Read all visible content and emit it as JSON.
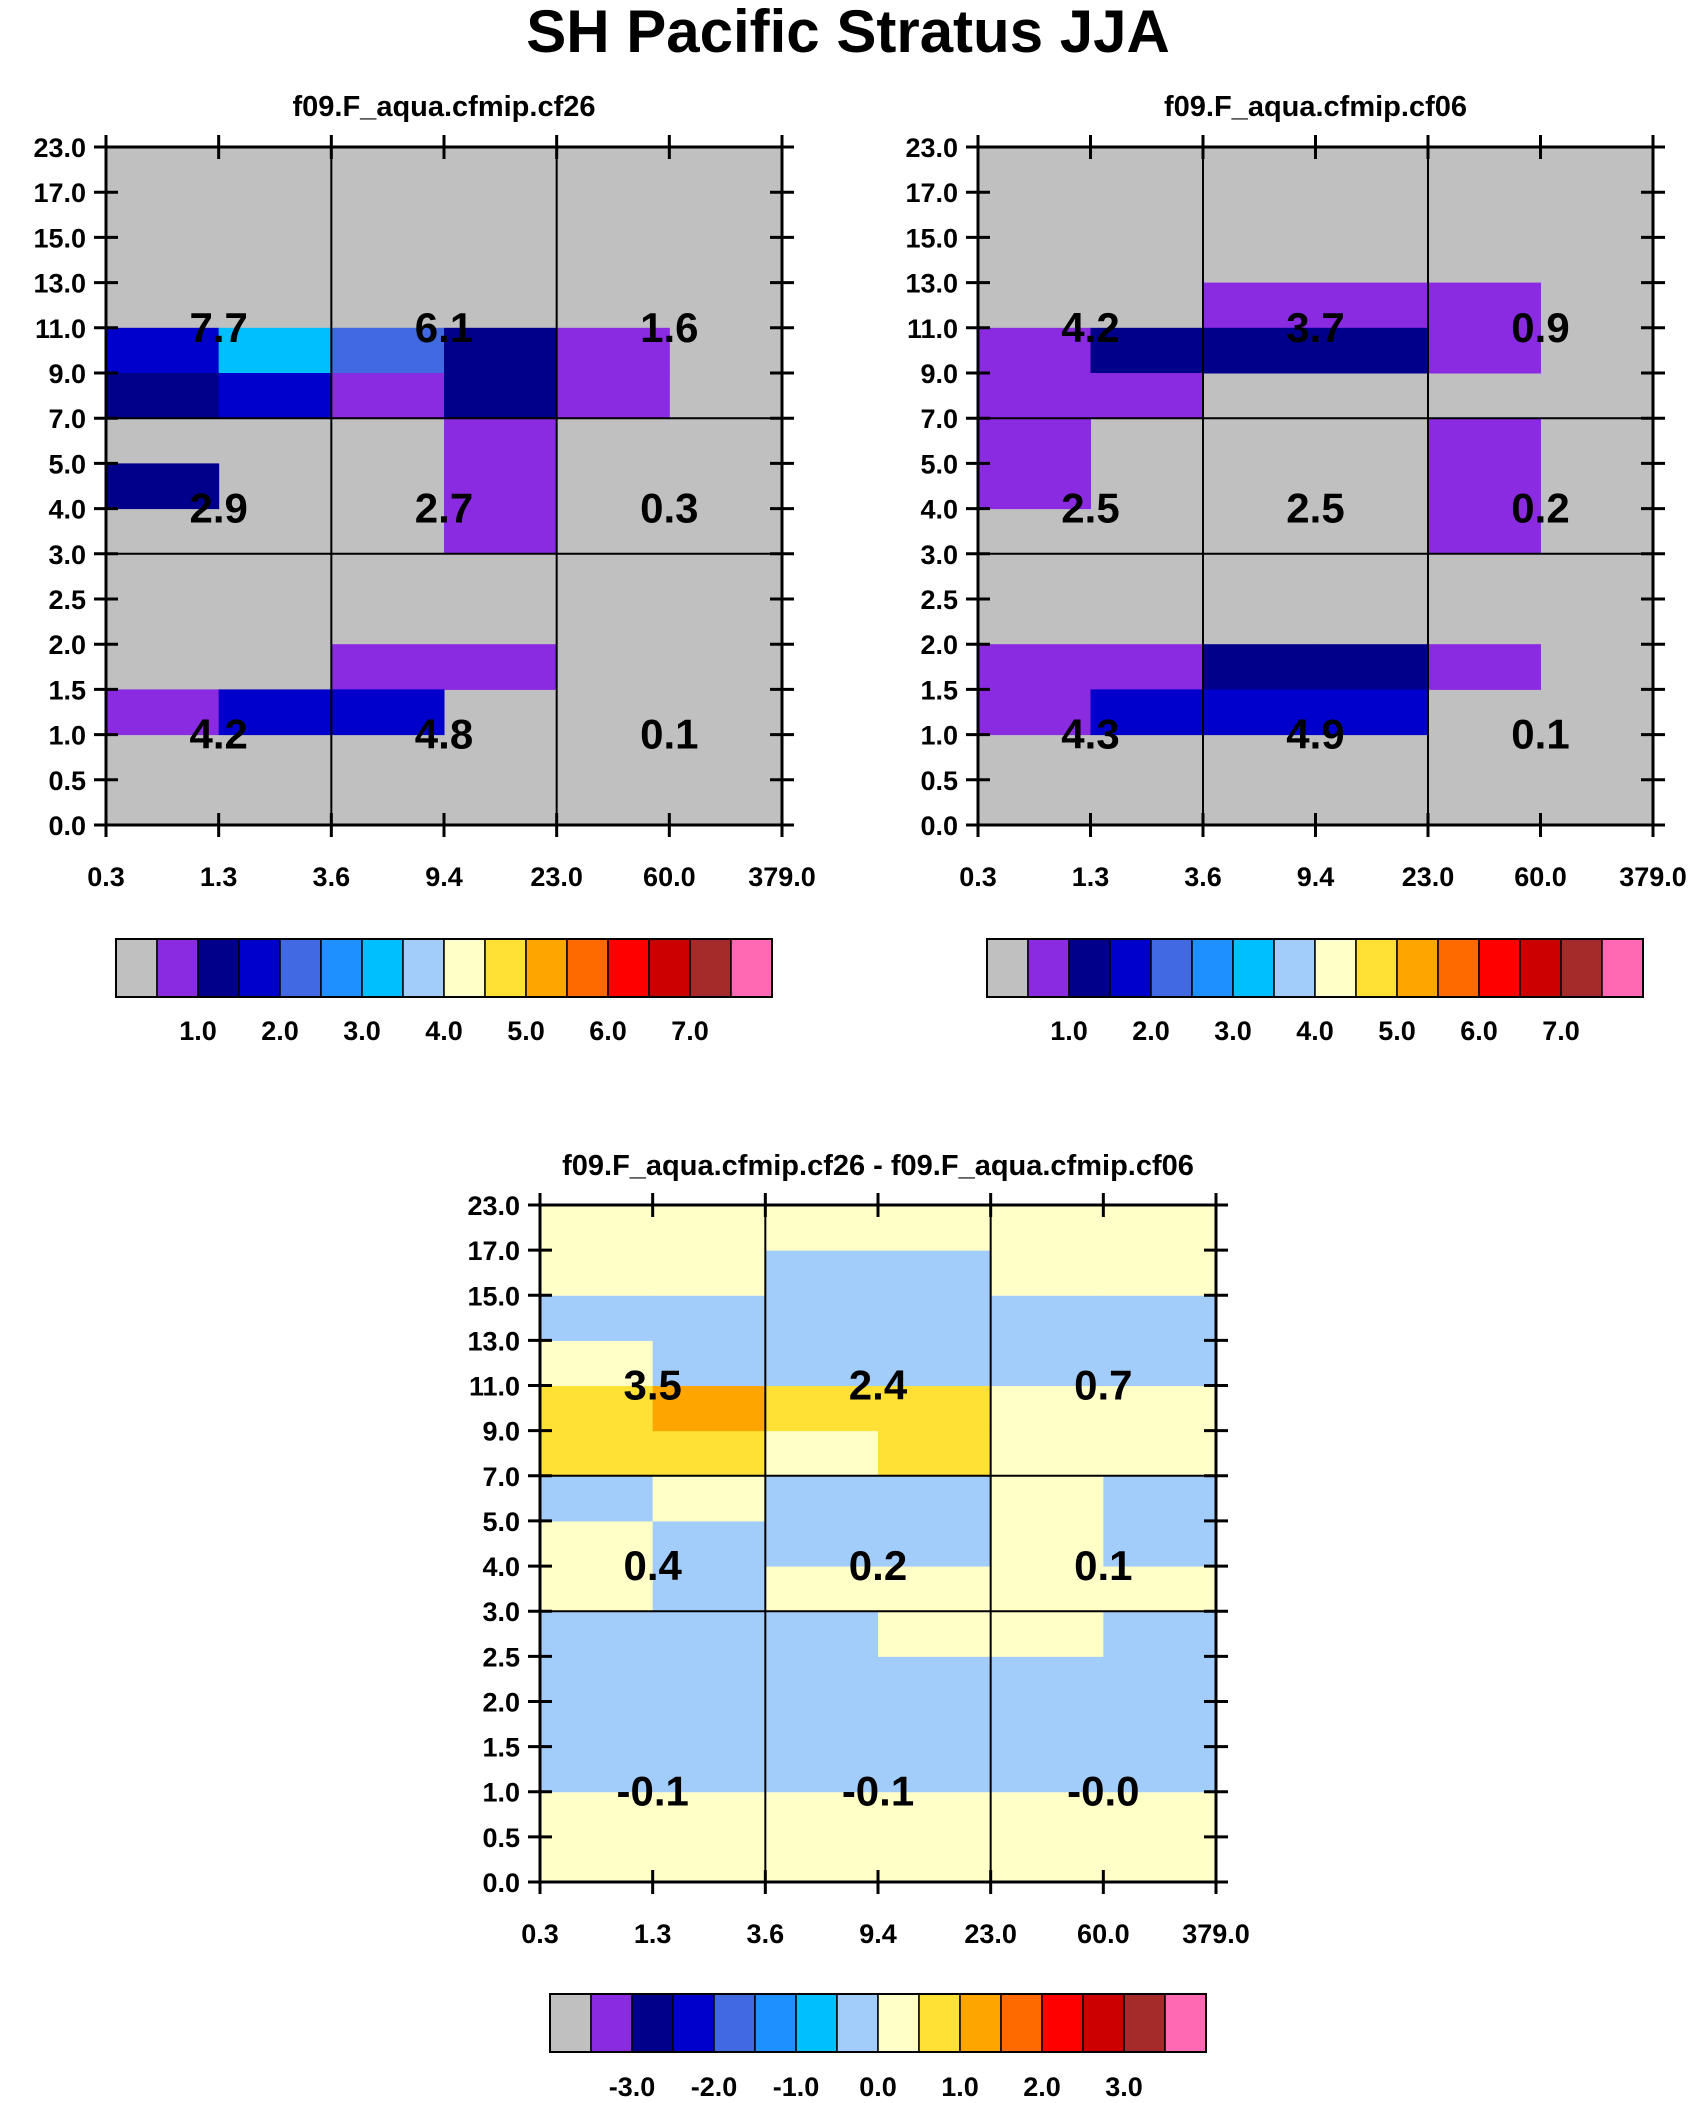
{
  "title": "SH Pacific Stratus JJA",
  "chart_data": [
    {
      "type": "heatmap",
      "panel": "model-a",
      "title": "f09.F_aqua.cfmip.cf26",
      "x_ticks": [
        "0.3",
        "1.3",
        "3.6",
        "9.4",
        "23.0",
        "60.0",
        "379.0"
      ],
      "y_ticks": [
        "0.0",
        "0.5",
        "1.0",
        "1.5",
        "2.0",
        "2.5",
        "3.0",
        "4.0",
        "5.0",
        "7.0",
        "9.0",
        "11.0",
        "13.0",
        "15.0",
        "17.0",
        "23.0"
      ],
      "cells": [
        {
          "row": 10,
          "col": 0,
          "bin": 3
        },
        {
          "row": 10,
          "col": 1,
          "bin": 6
        },
        {
          "row": 10,
          "col": 2,
          "bin": 4
        },
        {
          "row": 10,
          "col": 3,
          "bin": 2
        },
        {
          "row": 10,
          "col": 4,
          "bin": 1
        },
        {
          "row": 9,
          "col": 0,
          "bin": 2
        },
        {
          "row": 9,
          "col": 1,
          "bin": 3
        },
        {
          "row": 9,
          "col": 2,
          "bin": 1
        },
        {
          "row": 9,
          "col": 3,
          "bin": 2
        },
        {
          "row": 9,
          "col": 4,
          "bin": 1
        },
        {
          "row": 8,
          "col": 3,
          "bin": 1
        },
        {
          "row": 7,
          "col": 0,
          "bin": 2
        },
        {
          "row": 7,
          "col": 3,
          "bin": 1
        },
        {
          "row": 6,
          "col": 3,
          "bin": 1
        },
        {
          "row": 3,
          "col": 2,
          "bin": 1
        },
        {
          "row": 3,
          "col": 3,
          "bin": 1
        },
        {
          "row": 2,
          "col": 0,
          "bin": 1
        },
        {
          "row": 2,
          "col": 1,
          "bin": 3
        },
        {
          "row": 2,
          "col": 2,
          "bin": 3
        }
      ],
      "box_totals": [
        {
          "row_group": "high",
          "col_group": 0,
          "value": "7.7"
        },
        {
          "row_group": "high",
          "col_group": 1,
          "value": "6.1"
        },
        {
          "row_group": "high",
          "col_group": 2,
          "value": "1.6"
        },
        {
          "row_group": "mid",
          "col_group": 0,
          "value": "2.9"
        },
        {
          "row_group": "mid",
          "col_group": 1,
          "value": "2.7"
        },
        {
          "row_group": "mid",
          "col_group": 2,
          "value": "0.3"
        },
        {
          "row_group": "low",
          "col_group": 0,
          "value": "4.2"
        },
        {
          "row_group": "low",
          "col_group": 1,
          "value": "4.8"
        },
        {
          "row_group": "low",
          "col_group": 2,
          "value": "0.1"
        }
      ],
      "colorbar_labels": [
        "1.0",
        "2.0",
        "3.0",
        "4.0",
        "5.0",
        "6.0",
        "7.0"
      ]
    },
    {
      "type": "heatmap",
      "panel": "model-b",
      "title": "f09.F_aqua.cfmip.cf06",
      "x_ticks": [
        "0.3",
        "1.3",
        "3.6",
        "9.4",
        "23.0",
        "60.0",
        "379.0"
      ],
      "y_ticks": [
        "0.0",
        "0.5",
        "1.0",
        "1.5",
        "2.0",
        "2.5",
        "3.0",
        "4.0",
        "5.0",
        "7.0",
        "9.0",
        "11.0",
        "13.0",
        "15.0",
        "17.0",
        "23.0"
      ],
      "cells": [
        {
          "row": 11,
          "col": 2,
          "bin": 1
        },
        {
          "row": 11,
          "col": 3,
          "bin": 1
        },
        {
          "row": 11,
          "col": 4,
          "bin": 1
        },
        {
          "row": 10,
          "col": 0,
          "bin": 1
        },
        {
          "row": 10,
          "col": 1,
          "bin": 2
        },
        {
          "row": 10,
          "col": 2,
          "bin": 2
        },
        {
          "row": 10,
          "col": 3,
          "bin": 2
        },
        {
          "row": 10,
          "col": 4,
          "bin": 1
        },
        {
          "row": 9,
          "col": 0,
          "bin": 1
        },
        {
          "row": 9,
          "col": 1,
          "bin": 1
        },
        {
          "row": 8,
          "col": 0,
          "bin": 1
        },
        {
          "row": 8,
          "col": 4,
          "bin": 1
        },
        {
          "row": 7,
          "col": 0,
          "bin": 1
        },
        {
          "row": 7,
          "col": 4,
          "bin": 1
        },
        {
          "row": 6,
          "col": 4,
          "bin": 1
        },
        {
          "row": 3,
          "col": 0,
          "bin": 1
        },
        {
          "row": 3,
          "col": 1,
          "bin": 1
        },
        {
          "row": 3,
          "col": 2,
          "bin": 2
        },
        {
          "row": 3,
          "col": 3,
          "bin": 2
        },
        {
          "row": 3,
          "col": 4,
          "bin": 1
        },
        {
          "row": 2,
          "col": 0,
          "bin": 1
        },
        {
          "row": 2,
          "col": 1,
          "bin": 3
        },
        {
          "row": 2,
          "col": 2,
          "bin": 3
        },
        {
          "row": 2,
          "col": 3,
          "bin": 3
        }
      ],
      "box_totals": [
        {
          "row_group": "high",
          "col_group": 0,
          "value": "4.2"
        },
        {
          "row_group": "high",
          "col_group": 1,
          "value": "3.7"
        },
        {
          "row_group": "high",
          "col_group": 2,
          "value": "0.9"
        },
        {
          "row_group": "mid",
          "col_group": 0,
          "value": "2.5"
        },
        {
          "row_group": "mid",
          "col_group": 1,
          "value": "2.5"
        },
        {
          "row_group": "mid",
          "col_group": 2,
          "value": "0.2"
        },
        {
          "row_group": "low",
          "col_group": 0,
          "value": "4.3"
        },
        {
          "row_group": "low",
          "col_group": 1,
          "value": "4.9"
        },
        {
          "row_group": "low",
          "col_group": 2,
          "value": "0.1"
        }
      ],
      "colorbar_labels": [
        "1.0",
        "2.0",
        "3.0",
        "4.0",
        "5.0",
        "6.0",
        "7.0"
      ]
    },
    {
      "type": "heatmap",
      "panel": "difference",
      "title": "f09.F_aqua.cfmip.cf26 - f09.F_aqua.cfmip.cf06",
      "x_ticks": [
        "0.3",
        "1.3",
        "3.6",
        "9.4",
        "23.0",
        "60.0",
        "379.0"
      ],
      "y_ticks": [
        "0.0",
        "0.5",
        "1.0",
        "1.5",
        "2.0",
        "2.5",
        "3.0",
        "4.0",
        "5.0",
        "7.0",
        "9.0",
        "11.0",
        "13.0",
        "15.0",
        "17.0",
        "23.0"
      ],
      "cell_grid": [
        [
          8,
          8,
          8,
          8,
          8,
          8
        ],
        [
          8,
          8,
          8,
          8,
          8,
          8
        ],
        [
          7,
          7,
          7,
          7,
          7,
          7
        ],
        [
          7,
          7,
          7,
          7,
          7,
          7
        ],
        [
          7,
          7,
          7,
          7,
          7,
          7
        ],
        [
          7,
          7,
          7,
          8,
          8,
          7
        ],
        [
          8,
          7,
          8,
          8,
          8,
          8
        ],
        [
          8,
          7,
          7,
          7,
          8,
          7
        ],
        [
          7,
          8,
          7,
          7,
          8,
          7
        ],
        [
          9,
          9,
          8,
          9,
          8,
          8
        ],
        [
          9,
          10,
          9,
          9,
          8,
          8
        ],
        [
          8,
          7,
          7,
          7,
          7,
          7
        ],
        [
          7,
          7,
          7,
          7,
          7,
          7
        ],
        [
          8,
          8,
          7,
          7,
          8,
          8
        ],
        [
          8,
          8,
          8,
          8,
          8,
          8
        ]
      ],
      "box_totals": [
        {
          "row_group": "high",
          "col_group": 0,
          "value": "3.5"
        },
        {
          "row_group": "high",
          "col_group": 1,
          "value": "2.4"
        },
        {
          "row_group": "high",
          "col_group": 2,
          "value": "0.7"
        },
        {
          "row_group": "mid",
          "col_group": 0,
          "value": "0.4"
        },
        {
          "row_group": "mid",
          "col_group": 1,
          "value": "0.2"
        },
        {
          "row_group": "mid",
          "col_group": 2,
          "value": "0.1"
        },
        {
          "row_group": "low",
          "col_group": 0,
          "value": "-0.1"
        },
        {
          "row_group": "low",
          "col_group": 1,
          "value": "-0.1"
        },
        {
          "row_group": "low",
          "col_group": 2,
          "value": "-0.0"
        }
      ],
      "colorbar_labels": [
        "-3.0",
        "-2.0",
        "-1.0",
        "0.0",
        "1.0",
        "2.0",
        "3.0"
      ]
    }
  ],
  "palette": [
    "#c0c0c0",
    "#8a2be2",
    "#00008b",
    "#0000cd",
    "#4169e1",
    "#1e90ff",
    "#00bfff",
    "#a2cdfa",
    "#ffffc8",
    "#ffe135",
    "#ffa500",
    "#ff6a00",
    "#ff0000",
    "#cd0000",
    "#a52a2a",
    "#ff69b4"
  ]
}
